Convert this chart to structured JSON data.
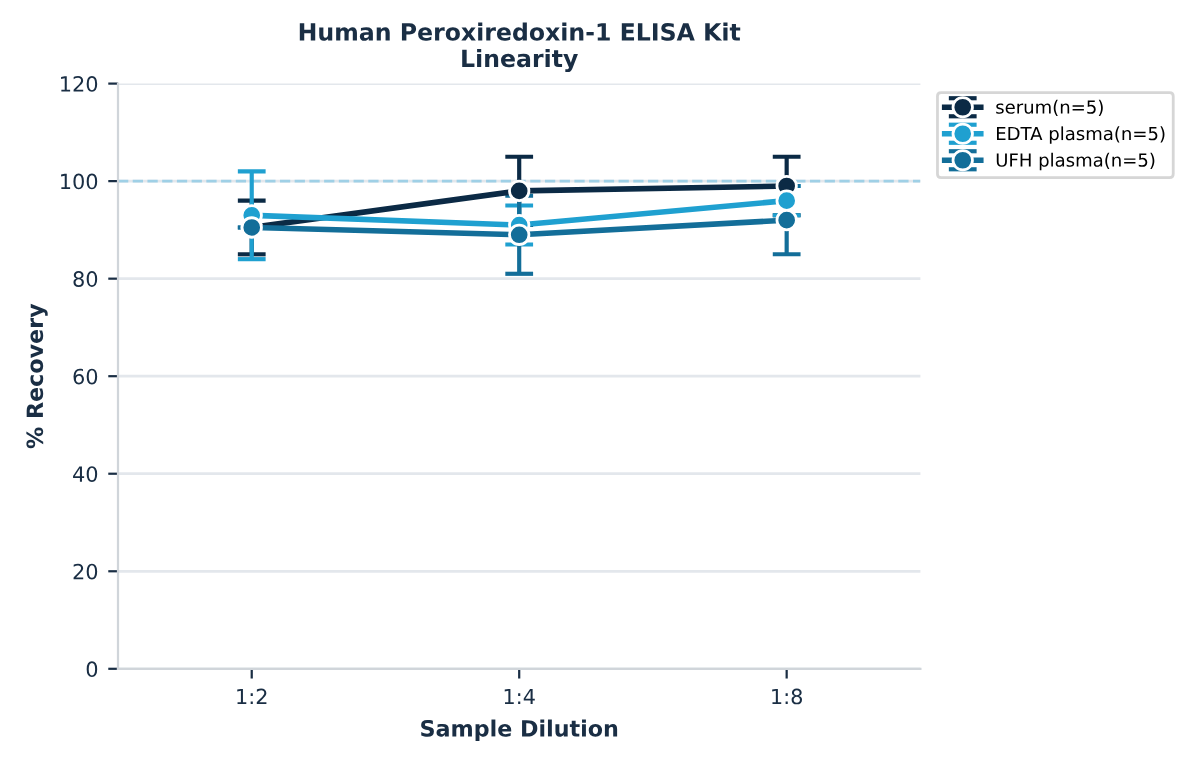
{
  "chart_data": {
    "type": "line",
    "title": "Human Peroxiredoxin-1 ELISA Kit\nLinearity",
    "xlabel": "Sample Dilution",
    "ylabel": "% Recovery",
    "categories": [
      "1:2",
      "1:4",
      "1:8"
    ],
    "series": [
      {
        "name": "serum(n=5)",
        "color": "#0b2a45",
        "values": [
          90.5,
          98,
          99
        ],
        "errors": [
          5.5,
          7,
          6
        ]
      },
      {
        "name": "EDTA plasma(n=5)",
        "color": "#1fa0d0",
        "values": [
          93,
          91,
          96
        ],
        "errors": [
          9,
          4,
          3
        ]
      },
      {
        "name": "UFH plasma(n=5)",
        "color": "#136e99",
        "values": [
          90.5,
          89,
          92
        ],
        "errors": [
          null,
          8,
          7
        ]
      }
    ],
    "ylim": [
      0,
      120
    ],
    "yticks": [
      0,
      20,
      40,
      60,
      80,
      100,
      120
    ],
    "grid": "y",
    "legend": "top right",
    "marker": "circle",
    "line_style": "solid",
    "ref_lines": [
      {
        "axis": "y",
        "value": 100,
        "color": "#9fd0e6",
        "line_style": "dashed"
      }
    ]
  }
}
